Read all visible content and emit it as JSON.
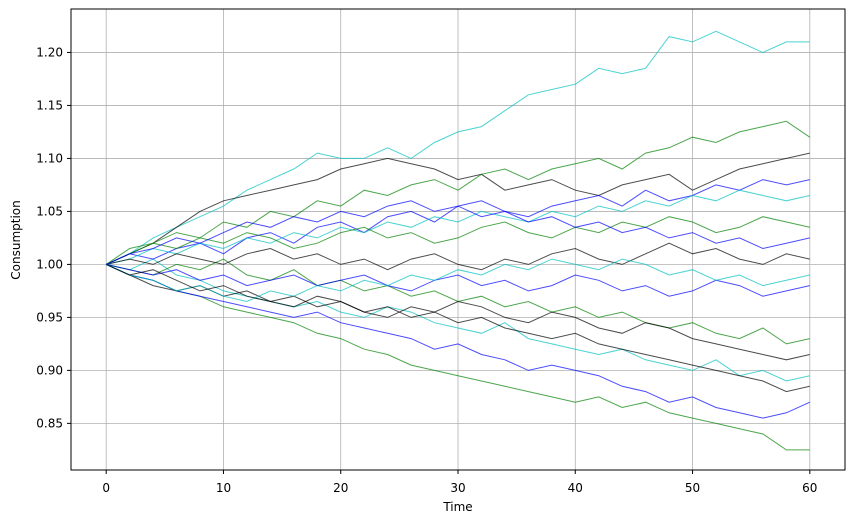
{
  "chart_data": {
    "type": "line",
    "xlabel": "Time",
    "ylabel": "Consumption",
    "x": [
      0,
      2,
      4,
      6,
      8,
      10,
      12,
      14,
      16,
      18,
      20,
      22,
      24,
      26,
      28,
      30,
      32,
      34,
      36,
      38,
      40,
      42,
      44,
      46,
      48,
      50,
      52,
      54,
      56,
      58,
      60
    ],
    "xlim": [
      -3,
      63
    ],
    "xticks": [
      0,
      10,
      20,
      30,
      40,
      50,
      60
    ],
    "ylim": [
      0.806,
      1.241
    ],
    "yticks": [
      0.85,
      {
        "value": 0.9,
        "label": "0.90"
      },
      0.95,
      {
        "value": 1.0,
        "label": "1.00"
      },
      1.05,
      {
        "value": 1.1,
        "label": "1.10"
      },
      1.15,
      {
        "value": 1.2,
        "label": "1.20"
      }
    ],
    "grid": true,
    "series": [
      {
        "color": "#00bfbf",
        "values": [
          1.0,
          1.01,
          1.025,
          1.035,
          1.045,
          1.055,
          1.07,
          1.08,
          1.09,
          1.105,
          1.1,
          1.1,
          1.11,
          1.1,
          1.115,
          1.125,
          1.13,
          1.145,
          1.16,
          1.165,
          1.17,
          1.185,
          1.18,
          1.185,
          1.215,
          1.21,
          1.22,
          1.21,
          1.2,
          1.21,
          1.21
        ]
      },
      {
        "color": "#008000",
        "values": [
          1.0,
          0.99,
          0.985,
          0.975,
          0.97,
          0.96,
          0.955,
          0.95,
          0.945,
          0.935,
          0.93,
          0.92,
          0.915,
          0.905,
          0.9,
          0.895,
          0.89,
          0.885,
          0.88,
          0.875,
          0.87,
          0.875,
          0.865,
          0.87,
          0.86,
          0.855,
          0.85,
          0.845,
          0.84,
          0.825,
          0.825
        ]
      },
      {
        "color": "#000000",
        "values": [
          1.0,
          1.01,
          1.02,
          1.035,
          1.05,
          1.06,
          1.065,
          1.07,
          1.075,
          1.08,
          1.09,
          1.095,
          1.1,
          1.095,
          1.09,
          1.08,
          1.085,
          1.07,
          1.075,
          1.08,
          1.07,
          1.065,
          1.075,
          1.08,
          1.085,
          1.07,
          1.08,
          1.09,
          1.095,
          1.1,
          1.105
        ]
      },
      {
        "color": "#0000ff",
        "values": [
          1.0,
          0.99,
          0.985,
          0.975,
          0.97,
          0.965,
          0.96,
          0.955,
          0.95,
          0.955,
          0.945,
          0.94,
          0.935,
          0.93,
          0.92,
          0.925,
          0.915,
          0.91,
          0.9,
          0.905,
          0.9,
          0.895,
          0.885,
          0.88,
          0.87,
          0.875,
          0.865,
          0.86,
          0.855,
          0.86,
          0.87
        ]
      },
      {
        "color": "#008000",
        "values": [
          1.0,
          1.015,
          1.02,
          1.03,
          1.025,
          1.04,
          1.035,
          1.05,
          1.045,
          1.06,
          1.055,
          1.07,
          1.065,
          1.075,
          1.08,
          1.07,
          1.085,
          1.09,
          1.08,
          1.09,
          1.095,
          1.1,
          1.09,
          1.105,
          1.11,
          1.12,
          1.115,
          1.125,
          1.13,
          1.135,
          1.12
        ]
      },
      {
        "color": "#00bfbf",
        "values": [
          1.0,
          0.995,
          1.005,
          0.99,
          0.985,
          0.975,
          0.97,
          0.965,
          0.96,
          0.965,
          0.955,
          0.95,
          0.96,
          0.955,
          0.945,
          0.94,
          0.935,
          0.945,
          0.93,
          0.925,
          0.92,
          0.915,
          0.92,
          0.91,
          0.905,
          0.9,
          0.91,
          0.895,
          0.9,
          0.89,
          0.895
        ]
      },
      {
        "color": "#000000",
        "values": [
          1.0,
          0.99,
          0.98,
          0.975,
          0.98,
          0.97,
          0.975,
          0.965,
          0.97,
          0.96,
          0.965,
          0.955,
          0.96,
          0.95,
          0.955,
          0.945,
          0.95,
          0.94,
          0.935,
          0.93,
          0.935,
          0.925,
          0.92,
          0.915,
          0.91,
          0.905,
          0.9,
          0.895,
          0.89,
          0.88,
          0.885
        ]
      },
      {
        "color": "#0000ff",
        "values": [
          1.0,
          1.01,
          1.005,
          1.015,
          1.02,
          1.01,
          1.025,
          1.03,
          1.02,
          1.035,
          1.04,
          1.03,
          1.045,
          1.05,
          1.04,
          1.055,
          1.06,
          1.05,
          1.045,
          1.055,
          1.06,
          1.065,
          1.055,
          1.07,
          1.06,
          1.065,
          1.075,
          1.07,
          1.08,
          1.075,
          1.08
        ]
      },
      {
        "color": "#008000",
        "values": [
          1.0,
          0.995,
          0.99,
          1.0,
          0.995,
          1.005,
          0.99,
          0.985,
          0.995,
          0.98,
          0.985,
          0.975,
          0.98,
          0.97,
          0.975,
          0.965,
          0.97,
          0.96,
          0.965,
          0.955,
          0.96,
          0.95,
          0.955,
          0.945,
          0.94,
          0.945,
          0.935,
          0.93,
          0.94,
          0.925,
          0.93
        ]
      },
      {
        "color": "#00bfbf",
        "values": [
          1.0,
          1.005,
          1.015,
          1.01,
          1.02,
          1.015,
          1.025,
          1.02,
          1.03,
          1.025,
          1.035,
          1.03,
          1.04,
          1.035,
          1.045,
          1.04,
          1.05,
          1.045,
          1.04,
          1.05,
          1.045,
          1.055,
          1.05,
          1.06,
          1.055,
          1.065,
          1.06,
          1.07,
          1.065,
          1.06,
          1.065
        ]
      },
      {
        "color": "#000000",
        "values": [
          1.0,
          1.005,
          1.0,
          1.01,
          1.005,
          1.0,
          1.01,
          1.015,
          1.005,
          1.01,
          1.0,
          1.005,
          0.995,
          1.005,
          1.01,
          1.0,
          0.995,
          1.005,
          1.0,
          1.01,
          1.015,
          1.005,
          1.0,
          1.01,
          1.02,
          1.01,
          1.015,
          1.005,
          1.0,
          1.01,
          1.005
        ]
      },
      {
        "color": "#0000ff",
        "values": [
          1.0,
          0.995,
          0.99,
          0.995,
          0.985,
          0.99,
          0.98,
          0.985,
          0.99,
          0.98,
          0.985,
          0.99,
          0.98,
          0.975,
          0.985,
          0.99,
          0.98,
          0.985,
          0.975,
          0.98,
          0.99,
          0.985,
          0.975,
          0.98,
          0.97,
          0.975,
          0.985,
          0.98,
          0.97,
          0.975,
          0.98
        ]
      },
      {
        "color": "#008000",
        "values": [
          1.0,
          1.01,
          1.02,
          1.015,
          1.025,
          1.02,
          1.03,
          1.025,
          1.015,
          1.02,
          1.03,
          1.035,
          1.025,
          1.03,
          1.02,
          1.025,
          1.035,
          1.04,
          1.03,
          1.025,
          1.035,
          1.03,
          1.04,
          1.035,
          1.045,
          1.04,
          1.03,
          1.035,
          1.045,
          1.04,
          1.035
        ]
      },
      {
        "color": "#00bfbf",
        "values": [
          1.0,
          0.99,
          0.985,
          0.975,
          0.98,
          0.97,
          0.965,
          0.975,
          0.97,
          0.98,
          0.975,
          0.985,
          0.98,
          0.99,
          0.985,
          0.995,
          0.99,
          1.0,
          0.995,
          1.005,
          1.0,
          0.995,
          1.005,
          1.0,
          0.99,
          0.995,
          0.985,
          0.99,
          0.98,
          0.985,
          0.99
        ]
      },
      {
        "color": "#000000",
        "values": [
          1.0,
          0.99,
          0.995,
          0.985,
          0.975,
          0.98,
          0.97,
          0.965,
          0.96,
          0.97,
          0.965,
          0.955,
          0.95,
          0.96,
          0.955,
          0.965,
          0.96,
          0.95,
          0.945,
          0.955,
          0.95,
          0.94,
          0.935,
          0.945,
          0.94,
          0.93,
          0.925,
          0.92,
          0.915,
          0.91,
          0.915
        ]
      },
      {
        "color": "#0000ff",
        "values": [
          1.0,
          1.01,
          1.015,
          1.025,
          1.02,
          1.03,
          1.04,
          1.035,
          1.045,
          1.04,
          1.05,
          1.045,
          1.055,
          1.06,
          1.05,
          1.055,
          1.045,
          1.05,
          1.04,
          1.045,
          1.035,
          1.04,
          1.03,
          1.035,
          1.025,
          1.03,
          1.02,
          1.025,
          1.015,
          1.02,
          1.025
        ]
      }
    ]
  }
}
